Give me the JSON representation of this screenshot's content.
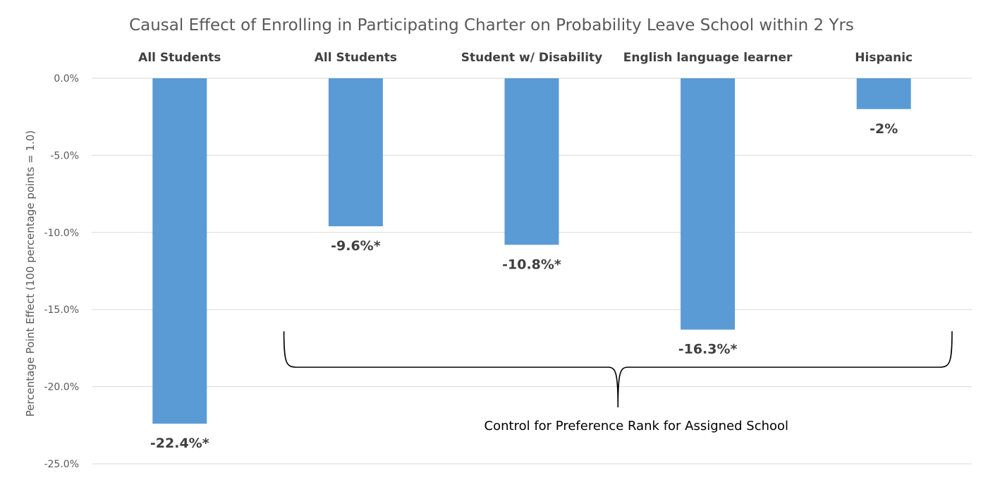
{
  "chart_data": {
    "type": "bar",
    "title": "Causal Effect of Enrolling in Participating Charter on Probability Leave School within 2 Yrs",
    "ylabel": "Percentage Point Effect  (100 percentage  points = 1.0)",
    "xlabel": "",
    "ylim": [
      -25,
      0
    ],
    "yticks": [
      {
        "value": 0,
        "label": "0.0%"
      },
      {
        "value": -5,
        "label": "-5.0%"
      },
      {
        "value": -10,
        "label": "-10.0%"
      },
      {
        "value": -15,
        "label": "-15.0%"
      },
      {
        "value": -20,
        "label": "-20.0%"
      },
      {
        "value": -25,
        "label": "-25.0%"
      }
    ],
    "grid": true,
    "legend": "none",
    "bar_color": "#5b9bd5",
    "categories": [
      "All Students",
      "All Students",
      "Student w/ Disability",
      "English language learner",
      "Hispanic"
    ],
    "values": [
      -22.4,
      -9.6,
      -10.8,
      -16.3,
      -2.0
    ],
    "data_labels": [
      "-22.4%*",
      "-9.6%*",
      "-10.8%*",
      "-16.3%*",
      "-2%"
    ],
    "annotation": {
      "text": "Control for Preference Rank for Assigned School",
      "covers_categories": [
        1,
        2,
        3,
        4
      ]
    }
  }
}
